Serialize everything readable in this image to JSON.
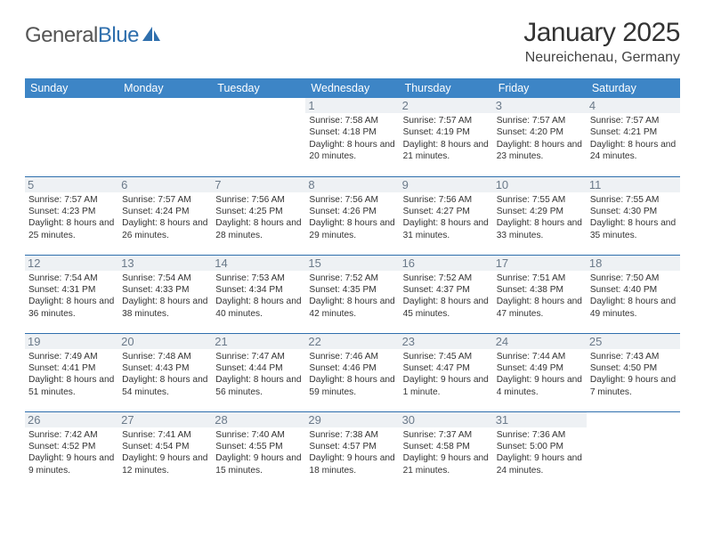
{
  "logo": {
    "text_left": "General",
    "text_right": "Blue"
  },
  "header": {
    "month_title": "January 2025",
    "location": "Neureichenau, Germany"
  },
  "colors": {
    "header_bg": "#3d85c6",
    "header_text": "#ffffff",
    "row_divider": "#2f6fad",
    "daynum_bg": "#eef1f4",
    "daynum_text": "#6b7a8a",
    "body_text": "#333333",
    "logo_blue": "#2f6fad"
  },
  "table": {
    "columns": [
      "Sunday",
      "Monday",
      "Tuesday",
      "Wednesday",
      "Thursday",
      "Friday",
      "Saturday"
    ],
    "weeks": [
      [
        {
          "n": "",
          "sr": "",
          "ss": "",
          "dl": ""
        },
        {
          "n": "",
          "sr": "",
          "ss": "",
          "dl": ""
        },
        {
          "n": "",
          "sr": "",
          "ss": "",
          "dl": ""
        },
        {
          "n": "1",
          "sr": "7:58 AM",
          "ss": "4:18 PM",
          "dl": "8 hours and 20 minutes."
        },
        {
          "n": "2",
          "sr": "7:57 AM",
          "ss": "4:19 PM",
          "dl": "8 hours and 21 minutes."
        },
        {
          "n": "3",
          "sr": "7:57 AM",
          "ss": "4:20 PM",
          "dl": "8 hours and 23 minutes."
        },
        {
          "n": "4",
          "sr": "7:57 AM",
          "ss": "4:21 PM",
          "dl": "8 hours and 24 minutes."
        }
      ],
      [
        {
          "n": "5",
          "sr": "7:57 AM",
          "ss": "4:23 PM",
          "dl": "8 hours and 25 minutes."
        },
        {
          "n": "6",
          "sr": "7:57 AM",
          "ss": "4:24 PM",
          "dl": "8 hours and 26 minutes."
        },
        {
          "n": "7",
          "sr": "7:56 AM",
          "ss": "4:25 PM",
          "dl": "8 hours and 28 minutes."
        },
        {
          "n": "8",
          "sr": "7:56 AM",
          "ss": "4:26 PM",
          "dl": "8 hours and 29 minutes."
        },
        {
          "n": "9",
          "sr": "7:56 AM",
          "ss": "4:27 PM",
          "dl": "8 hours and 31 minutes."
        },
        {
          "n": "10",
          "sr": "7:55 AM",
          "ss": "4:29 PM",
          "dl": "8 hours and 33 minutes."
        },
        {
          "n": "11",
          "sr": "7:55 AM",
          "ss": "4:30 PM",
          "dl": "8 hours and 35 minutes."
        }
      ],
      [
        {
          "n": "12",
          "sr": "7:54 AM",
          "ss": "4:31 PM",
          "dl": "8 hours and 36 minutes."
        },
        {
          "n": "13",
          "sr": "7:54 AM",
          "ss": "4:33 PM",
          "dl": "8 hours and 38 minutes."
        },
        {
          "n": "14",
          "sr": "7:53 AM",
          "ss": "4:34 PM",
          "dl": "8 hours and 40 minutes."
        },
        {
          "n": "15",
          "sr": "7:52 AM",
          "ss": "4:35 PM",
          "dl": "8 hours and 42 minutes."
        },
        {
          "n": "16",
          "sr": "7:52 AM",
          "ss": "4:37 PM",
          "dl": "8 hours and 45 minutes."
        },
        {
          "n": "17",
          "sr": "7:51 AM",
          "ss": "4:38 PM",
          "dl": "8 hours and 47 minutes."
        },
        {
          "n": "18",
          "sr": "7:50 AM",
          "ss": "4:40 PM",
          "dl": "8 hours and 49 minutes."
        }
      ],
      [
        {
          "n": "19",
          "sr": "7:49 AM",
          "ss": "4:41 PM",
          "dl": "8 hours and 51 minutes."
        },
        {
          "n": "20",
          "sr": "7:48 AM",
          "ss": "4:43 PM",
          "dl": "8 hours and 54 minutes."
        },
        {
          "n": "21",
          "sr": "7:47 AM",
          "ss": "4:44 PM",
          "dl": "8 hours and 56 minutes."
        },
        {
          "n": "22",
          "sr": "7:46 AM",
          "ss": "4:46 PM",
          "dl": "8 hours and 59 minutes."
        },
        {
          "n": "23",
          "sr": "7:45 AM",
          "ss": "4:47 PM",
          "dl": "9 hours and 1 minute."
        },
        {
          "n": "24",
          "sr": "7:44 AM",
          "ss": "4:49 PM",
          "dl": "9 hours and 4 minutes."
        },
        {
          "n": "25",
          "sr": "7:43 AM",
          "ss": "4:50 PM",
          "dl": "9 hours and 7 minutes."
        }
      ],
      [
        {
          "n": "26",
          "sr": "7:42 AM",
          "ss": "4:52 PM",
          "dl": "9 hours and 9 minutes."
        },
        {
          "n": "27",
          "sr": "7:41 AM",
          "ss": "4:54 PM",
          "dl": "9 hours and 12 minutes."
        },
        {
          "n": "28",
          "sr": "7:40 AM",
          "ss": "4:55 PM",
          "dl": "9 hours and 15 minutes."
        },
        {
          "n": "29",
          "sr": "7:38 AM",
          "ss": "4:57 PM",
          "dl": "9 hours and 18 minutes."
        },
        {
          "n": "30",
          "sr": "7:37 AM",
          "ss": "4:58 PM",
          "dl": "9 hours and 21 minutes."
        },
        {
          "n": "31",
          "sr": "7:36 AM",
          "ss": "5:00 PM",
          "dl": "9 hours and 24 minutes."
        },
        {
          "n": "",
          "sr": "",
          "ss": "",
          "dl": ""
        }
      ]
    ],
    "labels": {
      "sunrise": "Sunrise:",
      "sunset": "Sunset:",
      "daylight": "Daylight:"
    }
  }
}
